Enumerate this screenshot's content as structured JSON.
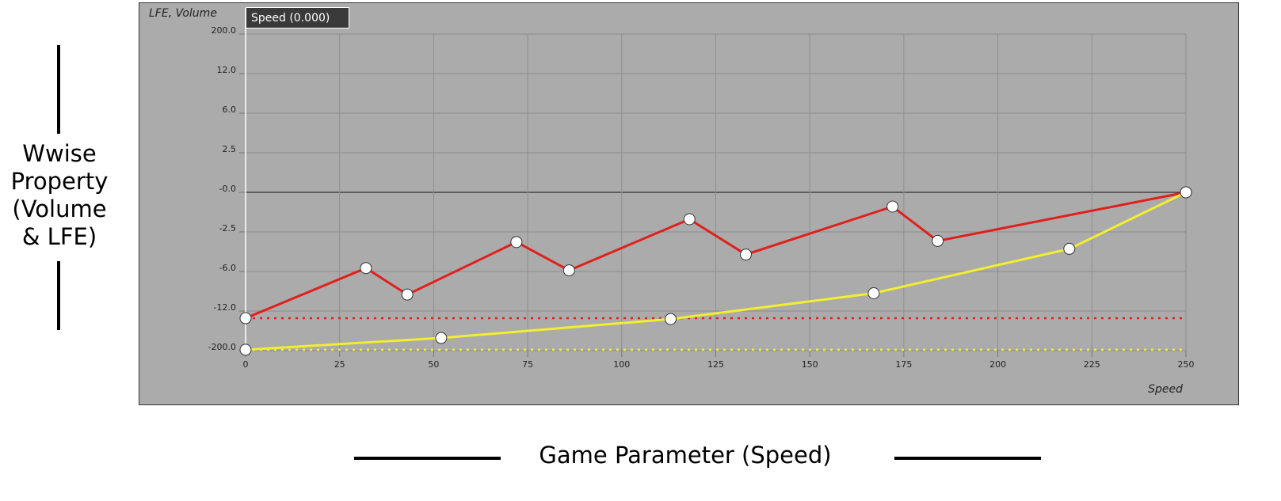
{
  "chart_data": {
    "type": "line",
    "y_label": "LFE, Volume",
    "x_label": "Speed",
    "cursor_label": "Speed (0.000)",
    "xlim": [
      0,
      250
    ],
    "xticks": [
      0,
      25,
      50,
      75,
      100,
      125,
      150,
      175,
      200,
      225,
      250
    ],
    "ylim": [
      -200,
      200
    ],
    "yticks": [
      {
        "value": 200,
        "label": "200.0"
      },
      {
        "value": 12,
        "label": "12.0"
      },
      {
        "value": 6,
        "label": "6.0"
      },
      {
        "value": 2.5,
        "label": "2.5"
      },
      {
        "value": 0,
        "label": "-0.0"
      },
      {
        "value": -2.5,
        "label": "-2.5"
      },
      {
        "value": -6,
        "label": "-6.0"
      },
      {
        "value": -12,
        "label": "-12.0"
      },
      {
        "value": -200,
        "label": "-200.0"
      }
    ],
    "y_scale": "tick-spaced",
    "grid": true,
    "series": [
      {
        "color": "#e0201c",
        "x": [
          0,
          32,
          43,
          72,
          86,
          118,
          133,
          172,
          184,
          250
        ],
        "values": [
          -46,
          -5.7,
          -9.5,
          -3.4,
          -5.9,
          -1.7,
          -4.5,
          -0.9,
          -3.3,
          0
        ]
      },
      {
        "color": "#f2ee30",
        "x": [
          0,
          52,
          113,
          167,
          219,
          250
        ],
        "values": [
          -196,
          -140,
          -50,
          -9.3,
          -4.0,
          0
        ]
      }
    ]
  },
  "captions": {
    "y": "Wwise Property (Volume & LFE)",
    "x": "Game Parameter (Speed)"
  }
}
